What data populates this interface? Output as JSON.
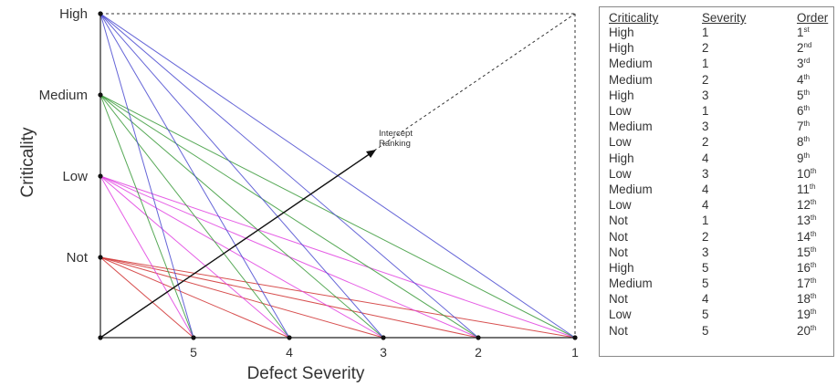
{
  "diagram": {
    "y_axis_title": "Criticality",
    "x_axis_title": "Defect Severity",
    "y_levels": [
      "Not",
      "Low",
      "Medium",
      "High"
    ],
    "x_levels": [
      "5",
      "4",
      "3",
      "2",
      "1"
    ],
    "intercept_label_line1": "Intercept",
    "intercept_label_line2": "Ranking",
    "line_colors": {
      "High": "#4a4ad0",
      "Medium": "#3a9a3a",
      "Low": "#e040e0",
      "Not": "#d03030"
    },
    "arrow_color": "#111111",
    "box_outline": "dashed"
  },
  "table": {
    "headers": [
      "Criticality",
      "Severity",
      "Order"
    ],
    "rows": [
      {
        "criticality": "High",
        "severity": "1",
        "order": "1",
        "suffix": "st"
      },
      {
        "criticality": "High",
        "severity": "2",
        "order": "2",
        "suffix": "nd"
      },
      {
        "criticality": "Medium",
        "severity": "1",
        "order": "3",
        "suffix": "rd"
      },
      {
        "criticality": "Medium",
        "severity": "2",
        "order": "4",
        "suffix": "th"
      },
      {
        "criticality": "High",
        "severity": "3",
        "order": "5",
        "suffix": "th"
      },
      {
        "criticality": "Low",
        "severity": "1",
        "order": "6",
        "suffix": "th"
      },
      {
        "criticality": "Medium",
        "severity": "3",
        "order": "7",
        "suffix": "th"
      },
      {
        "criticality": "Low",
        "severity": "2",
        "order": "8",
        "suffix": "th"
      },
      {
        "criticality": "High",
        "severity": "4",
        "order": "9",
        "suffix": "th"
      },
      {
        "criticality": "Low",
        "severity": "3",
        "order": "10",
        "suffix": "th"
      },
      {
        "criticality": "Medium",
        "severity": "4",
        "order": "11",
        "suffix": "th"
      },
      {
        "criticality": "Low",
        "severity": "4",
        "order": "12",
        "suffix": "th"
      },
      {
        "criticality": "Not",
        "severity": "1",
        "order": "13",
        "suffix": "th"
      },
      {
        "criticality": "Not",
        "severity": "2",
        "order": "14",
        "suffix": "th"
      },
      {
        "criticality": "Not",
        "severity": "3",
        "order": "15",
        "suffix": "th"
      },
      {
        "criticality": "High",
        "severity": "5",
        "order": "16",
        "suffix": "th"
      },
      {
        "criticality": "Medium",
        "severity": "5",
        "order": "17",
        "suffix": "th"
      },
      {
        "criticality": "Not",
        "severity": "4",
        "order": "18",
        "suffix": "th"
      },
      {
        "criticality": "Low",
        "severity": "5",
        "order": "19",
        "suffix": "th"
      },
      {
        "criticality": "Not",
        "severity": "5",
        "order": "20",
        "suffix": "th"
      }
    ]
  }
}
